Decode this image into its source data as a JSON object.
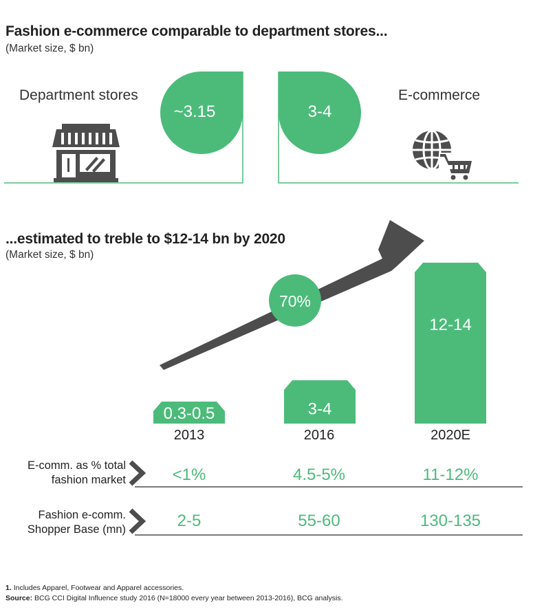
{
  "section1": {
    "title": "Fashion e-commerce comparable to department stores...",
    "subtitle": "(Market size, $ bn)",
    "left_label": "Department stores",
    "left_value": "~3.15",
    "right_label": "E-commerce",
    "right_value": "3-4",
    "left_icon": "storefront-icon",
    "right_icon": "globe-cart-icon"
  },
  "section2": {
    "title": "...estimated to treble to $12-14 bn by 2020",
    "subtitle": "(Market size, $ bn)",
    "growth_label": "70%"
  },
  "chart_data": {
    "type": "bar",
    "categories": [
      "2013",
      "2016",
      "2020E"
    ],
    "value_labels": [
      "0.3-0.5",
      "3-4",
      "12-14"
    ],
    "values": [
      0.4,
      3.5,
      13
    ],
    "growth_label": "70%",
    "title": "...estimated to treble to $12-14 bn by 2020",
    "subtitle": "(Market size, $ bn)",
    "bar_color": "#4cbb7a",
    "arrow_color": "#4d4d4d"
  },
  "table": {
    "rows": [
      {
        "label_line1": "E-comm. as % total",
        "label_line2": "fashion market",
        "values": [
          "<1%",
          "4.5-5%",
          "11-12%"
        ]
      },
      {
        "label_line1": "Fashion e-comm.",
        "label_line2": "Shopper Base (mn)",
        "values": [
          "2-5",
          "55-60",
          "130-135"
        ]
      }
    ]
  },
  "footnote": {
    "note_num": "1.",
    "note_text": "Includes Apparel, Footwear and Apparel accessories.",
    "source_label": "Source:",
    "source_text": "BCG CCI Digital Influence study 2016 (N=18000 every year between 2013-2016), BCG analysis."
  },
  "colors": {
    "green": "#4cbb7a",
    "dark": "#4d4d4d",
    "text": "#222222"
  }
}
